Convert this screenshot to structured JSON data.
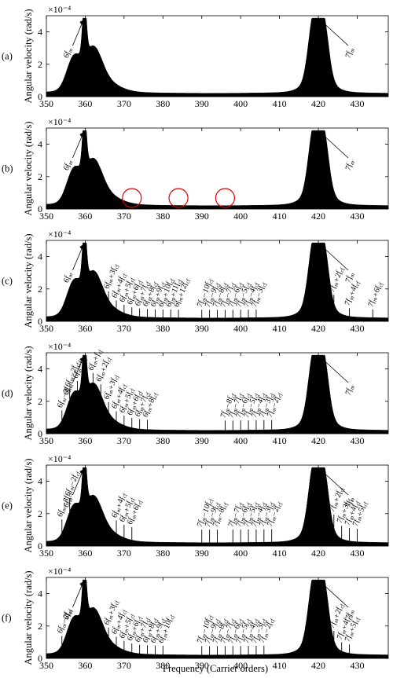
{
  "figure": {
    "xlabel": "Frequency (Carrier orders)",
    "ylabel": "Angular velocity (rad/s)"
  },
  "chart_data": [
    {
      "type": "line",
      "panel": "(a)",
      "scale": "×10⁻⁴",
      "xlim": [
        350,
        438
      ],
      "ylim": [
        0,
        5
      ],
      "x_ticks": [
        350,
        360,
        370,
        380,
        390,
        400,
        410,
        420,
        430
      ],
      "y_ticks": [
        0,
        2,
        4
      ],
      "annotations": [
        {
          "text": "6f_m",
          "x": 360
        },
        {
          "text": "7f_m",
          "x": 420
        }
      ],
      "markers": [],
      "harmonic_peaks": []
    },
    {
      "type": "line",
      "panel": "(b)",
      "scale": "×10⁻⁴",
      "xlim": [
        350,
        438
      ],
      "ylim": [
        0,
        5
      ],
      "x_ticks": [
        350,
        360,
        370,
        380,
        390,
        400,
        410,
        420,
        430
      ],
      "y_ticks": [
        0,
        2,
        4
      ],
      "annotations": [
        {
          "text": "6f_m",
          "x": 360
        },
        {
          "text": "7f_m",
          "x": 420
        }
      ],
      "markers": [
        {
          "shape": "circle",
          "color": "#e00000",
          "x": 372
        },
        {
          "shape": "circle",
          "color": "#e00000",
          "x": 384
        },
        {
          "shape": "circle",
          "color": "#e00000",
          "x": 396
        }
      ],
      "harmonic_peaks": []
    },
    {
      "type": "line",
      "panel": "(c)",
      "scale": "×10⁻⁴",
      "xlim": [
        350,
        438
      ],
      "ylim": [
        0,
        5
      ],
      "x_ticks": [
        350,
        360,
        370,
        380,
        390,
        400,
        410,
        420,
        430
      ],
      "y_ticks": [
        0,
        2,
        4
      ],
      "annotations": [
        {
          "text": "6f_m",
          "x": 360
        },
        {
          "text": "7f_m",
          "x": 420
        }
      ],
      "markers": [],
      "harmonic_peaks": [
        {
          "x": 366,
          "y": 0.25,
          "text": "6f_m+3f_cf"
        },
        {
          "x": 368,
          "y": 0.25,
          "text": "6f_m+4f_cf"
        },
        {
          "x": 370,
          "y": 0.25,
          "text": "6f_m+5f_cf"
        },
        {
          "x": 372,
          "y": 0.25,
          "text": "6f_m+6f_cf"
        },
        {
          "x": 374,
          "y": 0.25,
          "text": "6f_m+7f_cf"
        },
        {
          "x": 376,
          "y": 0.25,
          "text": "6f_m+8f_cf"
        },
        {
          "x": 378,
          "y": 0.25,
          "text": "6f_m+9f_cf"
        },
        {
          "x": 380,
          "y": 0.25,
          "text": "6f_m+10f_cf"
        },
        {
          "x": 382,
          "y": 0.25,
          "text": "6f_m+11f_cf"
        },
        {
          "x": 384,
          "y": 0.25,
          "text": "6f_m+12f_cf"
        },
        {
          "x": 390,
          "y": 0.25,
          "text": "7f_m−10f_cf"
        },
        {
          "x": 392,
          "y": 0.25,
          "text": "7f_m−9f_cf"
        },
        {
          "x": 394,
          "y": 0.25,
          "text": "7f_m−8f_cf"
        },
        {
          "x": 396,
          "y": 0.25,
          "text": "7f_m−7f_cf"
        },
        {
          "x": 398,
          "y": 0.25,
          "text": "7f_m−6f_cf"
        },
        {
          "x": 400,
          "y": 0.25,
          "text": "7f_m−5f_cf"
        },
        {
          "x": 402,
          "y": 0.25,
          "text": "7f_m−4f_cf"
        },
        {
          "x": 404,
          "y": 0.25,
          "text": "7f_m−3f_cf"
        },
        {
          "x": 424,
          "y": 0.25,
          "text": "7f_m+2f_cf"
        },
        {
          "x": 428,
          "y": 0.25,
          "text": "7f_m+4f_cf"
        },
        {
          "x": 434,
          "y": 0.25,
          "text": "7f_m+6f_cf"
        }
      ]
    },
    {
      "type": "line",
      "panel": "(d)",
      "scale": "×10⁻⁴",
      "xlim": [
        350,
        438
      ],
      "ylim": [
        0,
        5
      ],
      "x_ticks": [
        350,
        360,
        370,
        380,
        390,
        400,
        410,
        420,
        430
      ],
      "y_ticks": [
        0,
        2,
        4
      ],
      "annotations": [
        {
          "text": "6f_m",
          "x": 360
        },
        {
          "text": "7f_m",
          "x": 420
        }
      ],
      "markers": [],
      "harmonic_peaks": [
        {
          "x": 354,
          "y": 0.35,
          "text": "6f_m−3f_cf"
        },
        {
          "x": 356,
          "y": 0.35,
          "text": "6f_m−2f_cf"
        },
        {
          "x": 358,
          "y": 0.35,
          "text": "6f_m−f_cf"
        },
        {
          "x": 362,
          "y": 0.35,
          "text": "6f_m+f_cf"
        },
        {
          "x": 364,
          "y": 0.35,
          "text": "6f_m+2f_cf"
        },
        {
          "x": 366,
          "y": 0.35,
          "text": "6f_m+3f_cf"
        },
        {
          "x": 368,
          "y": 0.35,
          "text": "6f_m+4f_cf"
        },
        {
          "x": 370,
          "y": 0.35,
          "text": "6f_m+5f_cf"
        },
        {
          "x": 372,
          "y": 0.35,
          "text": "6f_m+6f_cf"
        },
        {
          "x": 374,
          "y": 0.35,
          "text": "6f_m+7f_cf"
        },
        {
          "x": 376,
          "y": 0.35,
          "text": "6f_m+8f_cf"
        },
        {
          "x": 396,
          "y": 0.35,
          "text": "7f_m−8f_cf"
        },
        {
          "x": 398,
          "y": 0.35,
          "text": "7f_m−7f_cf"
        },
        {
          "x": 400,
          "y": 0.35,
          "text": "7f_m−6f_cf"
        },
        {
          "x": 402,
          "y": 0.35,
          "text": "7f_m−5f_cf"
        },
        {
          "x": 404,
          "y": 0.35,
          "text": "7f_m−4f_cf"
        },
        {
          "x": 406,
          "y": 0.35,
          "text": "7f_m−3f_cf"
        },
        {
          "x": 408,
          "y": 0.35,
          "text": "7f_m−2f_cf"
        }
      ]
    },
    {
      "type": "line",
      "panel": "(e)",
      "scale": "×10⁻⁴",
      "xlim": [
        350,
        438
      ],
      "ylim": [
        0,
        5
      ],
      "x_ticks": [
        350,
        360,
        370,
        380,
        390,
        400,
        410,
        420,
        430
      ],
      "y_ticks": [
        0,
        2,
        4
      ],
      "annotations": [
        {
          "text": "6f_m",
          "x": 360
        },
        {
          "text": "7f_m",
          "x": 420
        }
      ],
      "markers": [],
      "harmonic_peaks": [
        {
          "x": 354,
          "y": 0.55,
          "text": "6f_m−3f_cf"
        },
        {
          "x": 356,
          "y": 0.55,
          "text": "6f_m−2f_cf"
        },
        {
          "x": 368,
          "y": 0.55,
          "text": "6f_m+4f_cf"
        },
        {
          "x": 370,
          "y": 0.55,
          "text": "6f_m+5f_cf"
        },
        {
          "x": 372,
          "y": 0.55,
          "text": "6f_m+6f_cf"
        },
        {
          "x": 390,
          "y": 0.55,
          "text": "7f_m−10f_cf"
        },
        {
          "x": 392,
          "y": 0.55,
          "text": "7f_m−9f_cf"
        },
        {
          "x": 394,
          "y": 0.55,
          "text": "7f_m−8f_cf"
        },
        {
          "x": 398,
          "y": 0.55,
          "text": "7f_m−7f_cf"
        },
        {
          "x": 400,
          "y": 0.55,
          "text": "7f_m−6f_cf"
        },
        {
          "x": 402,
          "y": 0.55,
          "text": "7f_m−5f_cf"
        },
        {
          "x": 404,
          "y": 0.55,
          "text": "7f_m−4f_cf"
        },
        {
          "x": 406,
          "y": 0.55,
          "text": "7f_m−3f_cf"
        },
        {
          "x": 408,
          "y": 0.55,
          "text": "7f_m−2f_cf"
        },
        {
          "x": 424,
          "y": 0.55,
          "text": "7f_m+2f_cf"
        },
        {
          "x": 426,
          "y": 0.55,
          "text": "7f_m+3f_cf"
        },
        {
          "x": 428,
          "y": 0.55,
          "text": "7f_m+4f_cf"
        },
        {
          "x": 430,
          "y": 0.55,
          "text": "7f_m+5f_cf"
        }
      ]
    },
    {
      "type": "line",
      "panel": "(f)",
      "scale": "×10⁻⁴",
      "xlim": [
        350,
        438
      ],
      "ylim": [
        0,
        5
      ],
      "x_ticks": [
        350,
        360,
        370,
        380,
        390,
        400,
        410,
        420,
        430
      ],
      "y_ticks": [
        0,
        2,
        4
      ],
      "annotations": [
        {
          "text": "6f_m",
          "x": 360
        },
        {
          "text": "7f_m",
          "x": 420
        }
      ],
      "markers": [],
      "harmonic_peaks": [
        {
          "x": 354,
          "y": 0.3,
          "text": "6f_m−2f_cf"
        },
        {
          "x": 366,
          "y": 0.3,
          "text": "6f_m+3f_cf"
        },
        {
          "x": 368,
          "y": 0.3,
          "text": "6f_m+4f_cf"
        },
        {
          "x": 370,
          "y": 0.3,
          "text": "6f_m+5f_cf"
        },
        {
          "x": 372,
          "y": 0.3,
          "text": "6f_m+6f_cf"
        },
        {
          "x": 374,
          "y": 0.3,
          "text": "6f_m+7f_cf"
        },
        {
          "x": 376,
          "y": 0.3,
          "text": "6f_m+8f_cf"
        },
        {
          "x": 378,
          "y": 0.3,
          "text": "6f_m+9f_cf"
        },
        {
          "x": 380,
          "y": 0.3,
          "text": "6f_m+10f_cf"
        },
        {
          "x": 390,
          "y": 0.3,
          "text": "7f_m−10f_cf"
        },
        {
          "x": 392,
          "y": 0.3,
          "text": "7f_m−9f_cf"
        },
        {
          "x": 394,
          "y": 0.3,
          "text": "7f_m−8f_cf"
        },
        {
          "x": 396,
          "y": 0.3,
          "text": "7f_m−7f_cf"
        },
        {
          "x": 398,
          "y": 0.3,
          "text": "7f_m−6f_cf"
        },
        {
          "x": 400,
          "y": 0.3,
          "text": "7f_m−5f_cf"
        },
        {
          "x": 402,
          "y": 0.3,
          "text": "7f_m−4f_cf"
        },
        {
          "x": 404,
          "y": 0.3,
          "text": "7f_m−3f_cf"
        },
        {
          "x": 406,
          "y": 0.3,
          "text": "7f_m−2f_cf"
        },
        {
          "x": 424,
          "y": 0.3,
          "text": "7f_m+2f_cf"
        },
        {
          "x": 426,
          "y": 0.3,
          "text": "7f_m+4f_cf"
        },
        {
          "x": 428,
          "y": 0.3,
          "text": "7f_m+5f_cf"
        }
      ]
    }
  ]
}
